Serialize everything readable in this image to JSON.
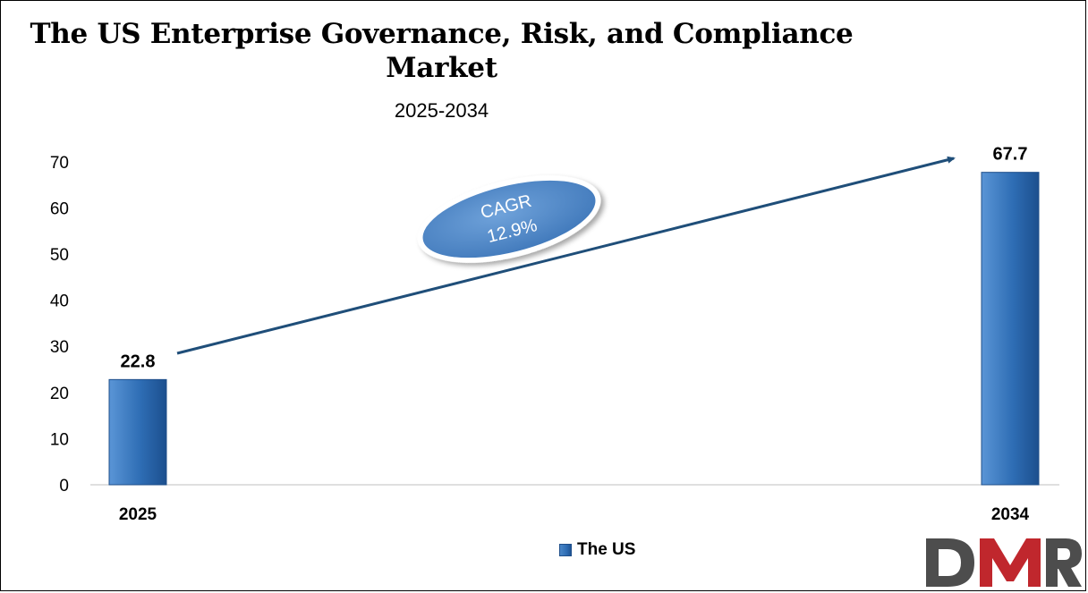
{
  "chart_data": {
    "type": "bar",
    "title": "The US Enterprise Governance, Risk, and Compliance Market",
    "subtitle": "2025-2034",
    "categories": [
      "2025",
      "2034"
    ],
    "series": [
      {
        "name": "The US",
        "values": [
          22.8,
          67.7
        ],
        "color": "#2e6db4"
      }
    ],
    "data_labels": [
      "22.8",
      "67.7"
    ],
    "y_ticks": [
      0,
      10,
      20,
      30,
      40,
      50,
      60,
      70
    ],
    "ylim": [
      0,
      70
    ],
    "grid": false,
    "legend": "bottom-center",
    "annotation": {
      "line1": "CAGR",
      "line2": "12.9%"
    }
  },
  "logo": {
    "text": "DMR",
    "colors": [
      "#4d4d4d",
      "#c0272d"
    ]
  }
}
